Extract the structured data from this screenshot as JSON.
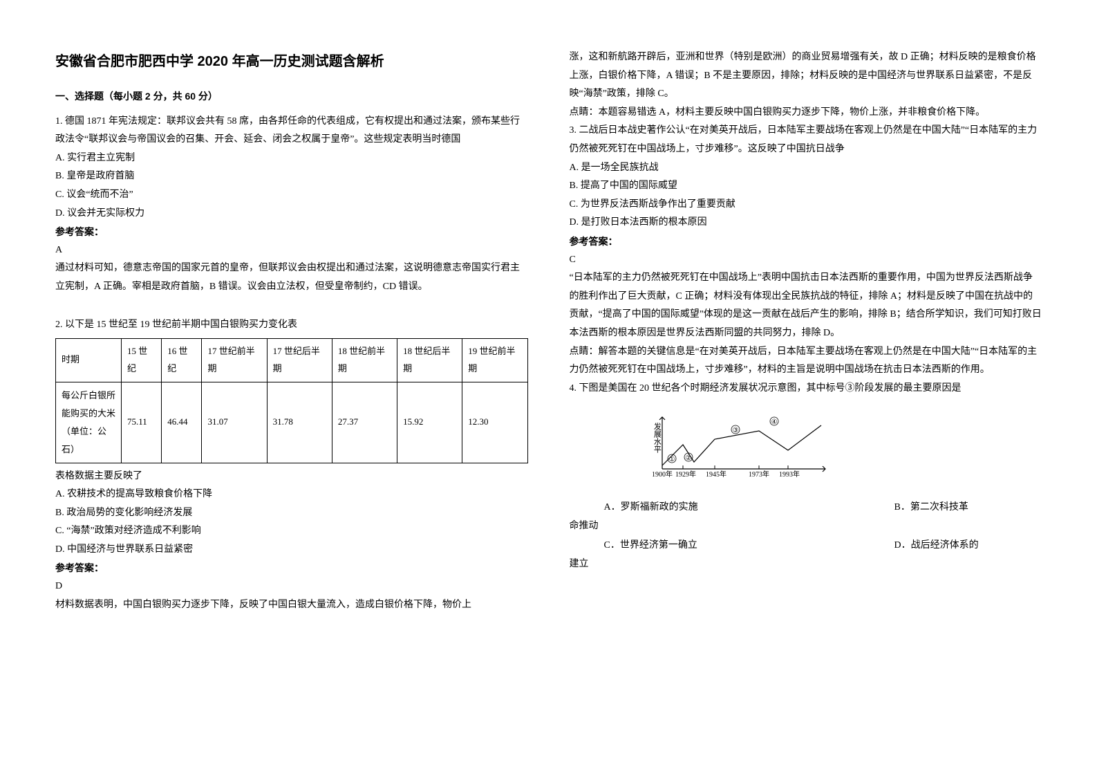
{
  "title": "安徽省合肥市肥西中学 2020 年高一历史测试题含解析",
  "section1": "一、选择题（每小题 2 分，共 60 分）",
  "q1": {
    "stem": "1. 德国 1871 年宪法规定：联邦议会共有 58 席，由各邦任命的代表组成，它有权提出和通过法案，颁布某些行政法令“联邦议会与帝国议会的召集、开会、延会、闭会之权属于皇帝”。这些规定表明当时德国",
    "a": "A. 实行君主立宪制",
    "b": "B. 皇帝是政府首脑",
    "c": "C. 议会“统而不治”",
    "d": "D. 议会并无实际权力",
    "ansLabel": "参考答案：",
    "ans": "A",
    "exp": "通过材料可知，德意志帝国的国家元首的皇帝，但联邦议会由权提出和通过法案，这说明德意志帝国实行君主立宪制，A 正确。宰相是政府首脑，B 错误。议会由立法权，但受皇帝制约，CD 错误。"
  },
  "q2": {
    "stem": "2. 以下是 15 世纪至 19 世纪前半期中国白银购买力变化表",
    "table": {
      "headers": [
        "时期",
        "15 世纪",
        "16 世纪",
        "17 世纪前半期",
        "17 世纪后半期",
        "18 世纪前半期",
        "18 世纪后半期",
        "19 世纪前半期"
      ],
      "rowLabel": "每公斤白银所能购买的大米（单位：公石）",
      "values": [
        "75.11",
        "46.44",
        "31.07",
        "31.78",
        "27.37",
        "15.92",
        "12.30"
      ]
    },
    "post": "表格数据主要反映了",
    "a": "A. 农耕技术的提高导致粮食价格下降",
    "b": "B. 政治局势的变化影响经济发展",
    "c": "C. “海禁”政策对经济造成不利影响",
    "d": "D. 中国经济与世界联系日益紧密",
    "ansLabel": "参考答案：",
    "ans": "D",
    "exp1": "材料数据表明，中国白银购买力逐步下降，反映了中国白银大量流入，造成白银价格下降，物价上",
    "exp2": "涨，这和新航路开辟后，亚洲和世界（特别是欧洲）的商业贸易增强有关，故 D 正确；材料反映的是粮食价格上涨，白银价格下降，A 错误；B 不是主要原因，排除；材料反映的是中国经济与世界联系日益紧密，不是反映“海禁”政策，排除 C。",
    "hint": "点睛：本题容易错选 A，材料主要反映中国白银购买力逐步下降，物价上涨，并非粮食价格下降。"
  },
  "q3": {
    "stem": "3. 二战后日本战史著作公认“在对美英开战后，日本陆军主要战场在客观上仍然是在中国大陆”“日本陆军的主力仍然被死死钉在中国战场上，寸步难移”。这反映了中国抗日战争",
    "a": "A. 是一场全民族抗战",
    "b": "B. 提高了中国的国际威望",
    "c": "C. 为世界反法西斯战争作出了重要贡献",
    "d": "D. 是打败日本法西斯的根本原因",
    "ansLabel": "参考答案：",
    "ans": "C",
    "exp": "“日本陆军的主力仍然被死死钉在中国战场上”表明中国抗击日本法西斯的重要作用，中国为世界反法西斯战争的胜利作出了巨大贡献，C 正确；材料没有体现出全民族抗战的特征，排除 A；材料是反映了中国在抗战中的贡献，“提高了中国的国际威望”体现的是这一贡献在战后产生的影响，排除 B；结合所学知识，我们可知打败日本法西斯的根本原因是世界反法西斯同盟的共同努力，排除 D。",
    "hint": "点睛：解答本题的关键信息是“在对美英开战后，日本陆军主要战场在客观上仍然是在中国大陆”“日本陆军的主力仍然被死死钉在中国战场上，寸步难移”，材料的主旨是说明中国战场在抗击日本法西斯的作用。"
  },
  "q4": {
    "stem": "4. 下图是美国在 20 世纪各个时期经济发展状况示意图，其中标号③阶段发展的最主要原因是",
    "chart": {
      "yLabel": "发展水平",
      "xTicks": [
        "1900年",
        "1929年",
        "1945年",
        "1973年",
        "1993年"
      ],
      "labels": [
        "①",
        "②",
        "③",
        "④"
      ],
      "color": "#000000",
      "lineWidth": 1.2,
      "points": [
        [
          14,
          80
        ],
        [
          44,
          50
        ],
        [
          60,
          75
        ],
        [
          90,
          42
        ],
        [
          154,
          30
        ],
        [
          196,
          58
        ],
        [
          244,
          22
        ]
      ]
    },
    "a": "A．罗斯福新政的实施",
    "b": "B．第二次科技革",
    "bCont": "命推动",
    "c": "C．世界经济第一确立",
    "d": "D．战后经济体系的",
    "dCont": "建立"
  }
}
